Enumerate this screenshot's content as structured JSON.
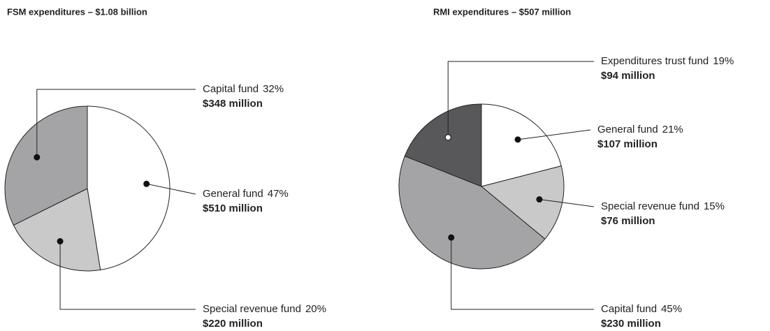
{
  "chart_data": [
    {
      "type": "pie",
      "title": "FSM expenditures – $1.08 billion",
      "categories": [
        "General fund",
        "Special revenue fund",
        "Capital fund"
      ],
      "values": [
        47,
        20,
        32
      ],
      "value_labels": [
        "47%",
        "20%",
        "32%"
      ],
      "amounts": [
        510,
        220,
        348
      ],
      "amount_labels": [
        "$510 million",
        "$220 million",
        "$348 million"
      ],
      "colors": [
        "#ffffff",
        "#c9c9c9",
        "#a4a4a6"
      ]
    },
    {
      "type": "pie",
      "title": "RMI expenditures – $507 million",
      "categories": [
        "General fund",
        "Special revenue fund",
        "Capital fund",
        "Expenditures trust fund"
      ],
      "values": [
        21,
        15,
        45,
        19
      ],
      "value_labels": [
        "21%",
        "15%",
        "45%",
        "19%"
      ],
      "amounts": [
        107,
        76,
        230,
        94
      ],
      "amount_labels": [
        "$107 million",
        "$76 million",
        "$230 million",
        "$94 million"
      ],
      "colors": [
        "#ffffff",
        "#c9c9c9",
        "#a4a4a6",
        "#58585a"
      ]
    }
  ]
}
